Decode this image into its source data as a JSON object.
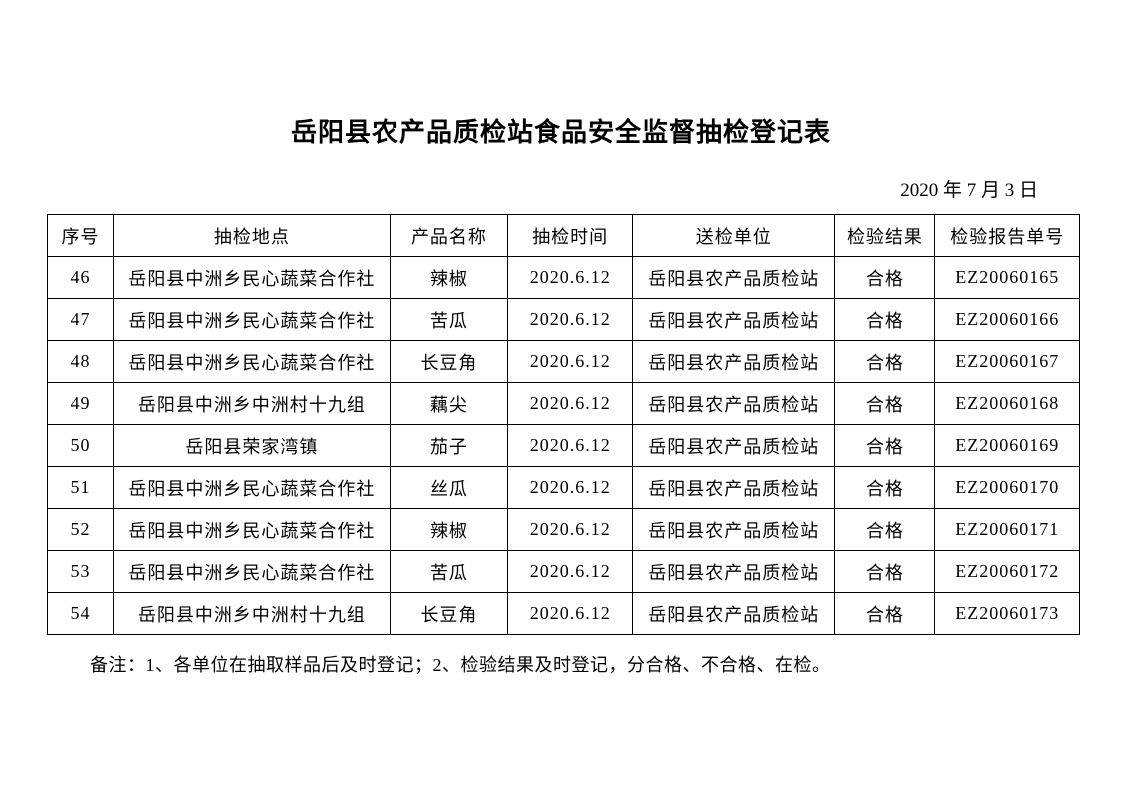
{
  "page": {
    "title": "岳阳县农产品质检站食品安全监督抽检登记表",
    "date": "2020 年 7 月 3 日",
    "note": "备注：1、各单位在抽取样品后及时登记；2、检验结果及时登记，分合格、不合格、在检。"
  },
  "table": {
    "headers": [
      "序号",
      "抽检地点",
      "产品名称",
      "抽检时间",
      "送检单位",
      "检验结果",
      "检验报告单号"
    ],
    "rows": [
      [
        "46",
        "岳阳县中洲乡民心蔬菜合作社",
        "辣椒",
        "2020.6.12",
        "岳阳县农产品质检站",
        "合格",
        "EZ20060165"
      ],
      [
        "47",
        "岳阳县中洲乡民心蔬菜合作社",
        "苦瓜",
        "2020.6.12",
        "岳阳县农产品质检站",
        "合格",
        "EZ20060166"
      ],
      [
        "48",
        "岳阳县中洲乡民心蔬菜合作社",
        "长豆角",
        "2020.6.12",
        "岳阳县农产品质检站",
        "合格",
        "EZ20060167"
      ],
      [
        "49",
        "岳阳县中洲乡中洲村十九组",
        "藕尖",
        "2020.6.12",
        "岳阳县农产品质检站",
        "合格",
        "EZ20060168"
      ],
      [
        "50",
        "岳阳县荣家湾镇",
        "茄子",
        "2020.6.12",
        "岳阳县农产品质检站",
        "合格",
        "EZ20060169"
      ],
      [
        "51",
        "岳阳县中洲乡民心蔬菜合作社",
        "丝瓜",
        "2020.6.12",
        "岳阳县农产品质检站",
        "合格",
        "EZ20060170"
      ],
      [
        "52",
        "岳阳县中洲乡民心蔬菜合作社",
        "辣椒",
        "2020.6.12",
        "岳阳县农产品质检站",
        "合格",
        "EZ20060171"
      ],
      [
        "53",
        "岳阳县中洲乡民心蔬菜合作社",
        "苦瓜",
        "2020.6.12",
        "岳阳县农产品质检站",
        "合格",
        "EZ20060172"
      ],
      [
        "54",
        "岳阳县中洲乡中洲村十九组",
        "长豆角",
        "2020.6.12",
        "岳阳县农产品质检站",
        "合格",
        "EZ20060173"
      ]
    ]
  }
}
